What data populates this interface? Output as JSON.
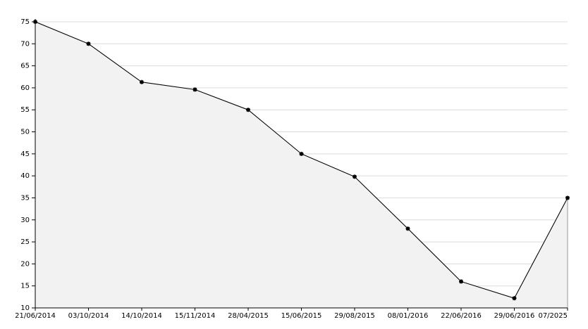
{
  "chart_data": {
    "type": "area",
    "categories": [
      "21/06/2014",
      "03/10/2014",
      "14/10/2014",
      "15/11/2014",
      "28/04/2015",
      "15/06/2015",
      "29/08/2015",
      "08/01/2016",
      "22/06/2016",
      "29/06/2016",
      "07/2025"
    ],
    "values": [
      75,
      70,
      61.3,
      59.6,
      55,
      45,
      39.8,
      28,
      16,
      12.2,
      35
    ],
    "color": "#000000",
    "fill_color": "#f2f2f2",
    "ylim": [
      10,
      75
    ],
    "yticks": [
      10,
      15,
      20,
      25,
      30,
      35,
      40,
      45,
      50,
      55,
      60,
      65,
      70,
      75
    ],
    "grid": true
  }
}
